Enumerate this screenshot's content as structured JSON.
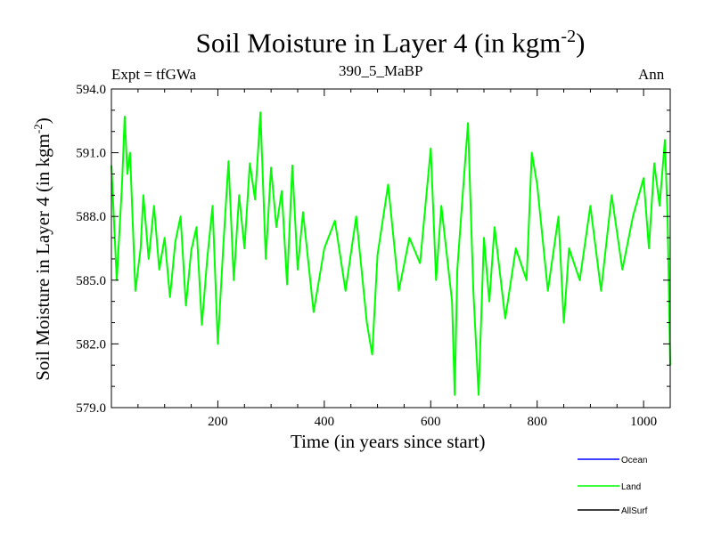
{
  "chart_data": {
    "type": "line",
    "title": "Soil Moisture in Layer 4 (in kgm",
    "title_sup": "-2",
    "title_end": ")",
    "subtitle_left": "Expt = tfGWa",
    "subtitle_center": "390_5_MaBP",
    "subtitle_right": "Ann",
    "xlabel": "Time (in years since start)",
    "ylabel": "Soil Moisture in Layer 4 (in kgm",
    "ylabel_sup": "-2",
    "ylabel_end": ")",
    "xlim": [
      0,
      1050
    ],
    "ylim": [
      579.0,
      594.0
    ],
    "x_ticks": [
      200,
      400,
      600,
      800,
      1000
    ],
    "x_tick_labels": [
      "200",
      "400",
      "600",
      "800",
      "1000"
    ],
    "y_ticks": [
      579.0,
      582.0,
      585.0,
      588.0,
      591.0,
      594.0
    ],
    "y_tick_labels": [
      "579.0",
      "582.0",
      "585.0",
      "588.0",
      "591.0",
      "594.0"
    ],
    "legend": [
      {
        "name": "Ocean",
        "color": "#0000ff"
      },
      {
        "name": "Land",
        "color": "#00ff00"
      },
      {
        "name": "AllSurf",
        "color": "#000000"
      }
    ],
    "series": [
      {
        "name": "Land",
        "color": "#00ff00",
        "x": [
          0,
          10,
          20,
          25,
          30,
          35,
          45,
          55,
          60,
          70,
          80,
          90,
          100,
          110,
          120,
          130,
          140,
          150,
          160,
          170,
          180,
          190,
          200,
          210,
          220,
          230,
          240,
          250,
          260,
          270,
          280,
          290,
          300,
          310,
          320,
          330,
          340,
          350,
          360,
          380,
          400,
          420,
          440,
          460,
          480,
          490,
          500,
          520,
          540,
          560,
          580,
          600,
          610,
          620,
          640,
          645,
          650,
          660,
          670,
          680,
          690,
          700,
          710,
          720,
          740,
          760,
          780,
          790,
          800,
          820,
          840,
          850,
          860,
          880,
          900,
          920,
          940,
          960,
          980,
          1000,
          1010,
          1020,
          1030,
          1040,
          1045,
          1050
        ],
        "values": [
          590.4,
          585.0,
          589.5,
          592.7,
          590.0,
          591.0,
          584.5,
          586.5,
          589.0,
          586.0,
          588.5,
          585.5,
          587.0,
          584.2,
          586.8,
          588.0,
          583.8,
          586.4,
          587.5,
          582.9,
          586.0,
          588.5,
          582.0,
          586.5,
          590.6,
          585.0,
          589.0,
          586.5,
          590.5,
          588.8,
          592.9,
          586.0,
          590.3,
          587.5,
          589.2,
          584.8,
          590.4,
          585.5,
          588.2,
          583.5,
          586.5,
          587.8,
          584.5,
          588.0,
          583.0,
          581.5,
          586.2,
          589.5,
          584.5,
          587.0,
          585.8,
          591.2,
          585.0,
          588.5,
          584.0,
          579.6,
          585.5,
          589.0,
          592.4,
          584.5,
          579.6,
          587.0,
          584.0,
          587.5,
          583.2,
          586.5,
          585.0,
          591.0,
          589.5,
          584.5,
          588.0,
          583.0,
          586.5,
          585.0,
          588.5,
          584.5,
          589.0,
          585.5,
          588.0,
          589.8,
          586.5,
          590.5,
          588.5,
          591.6,
          588.0,
          581.0
        ]
      }
    ]
  }
}
